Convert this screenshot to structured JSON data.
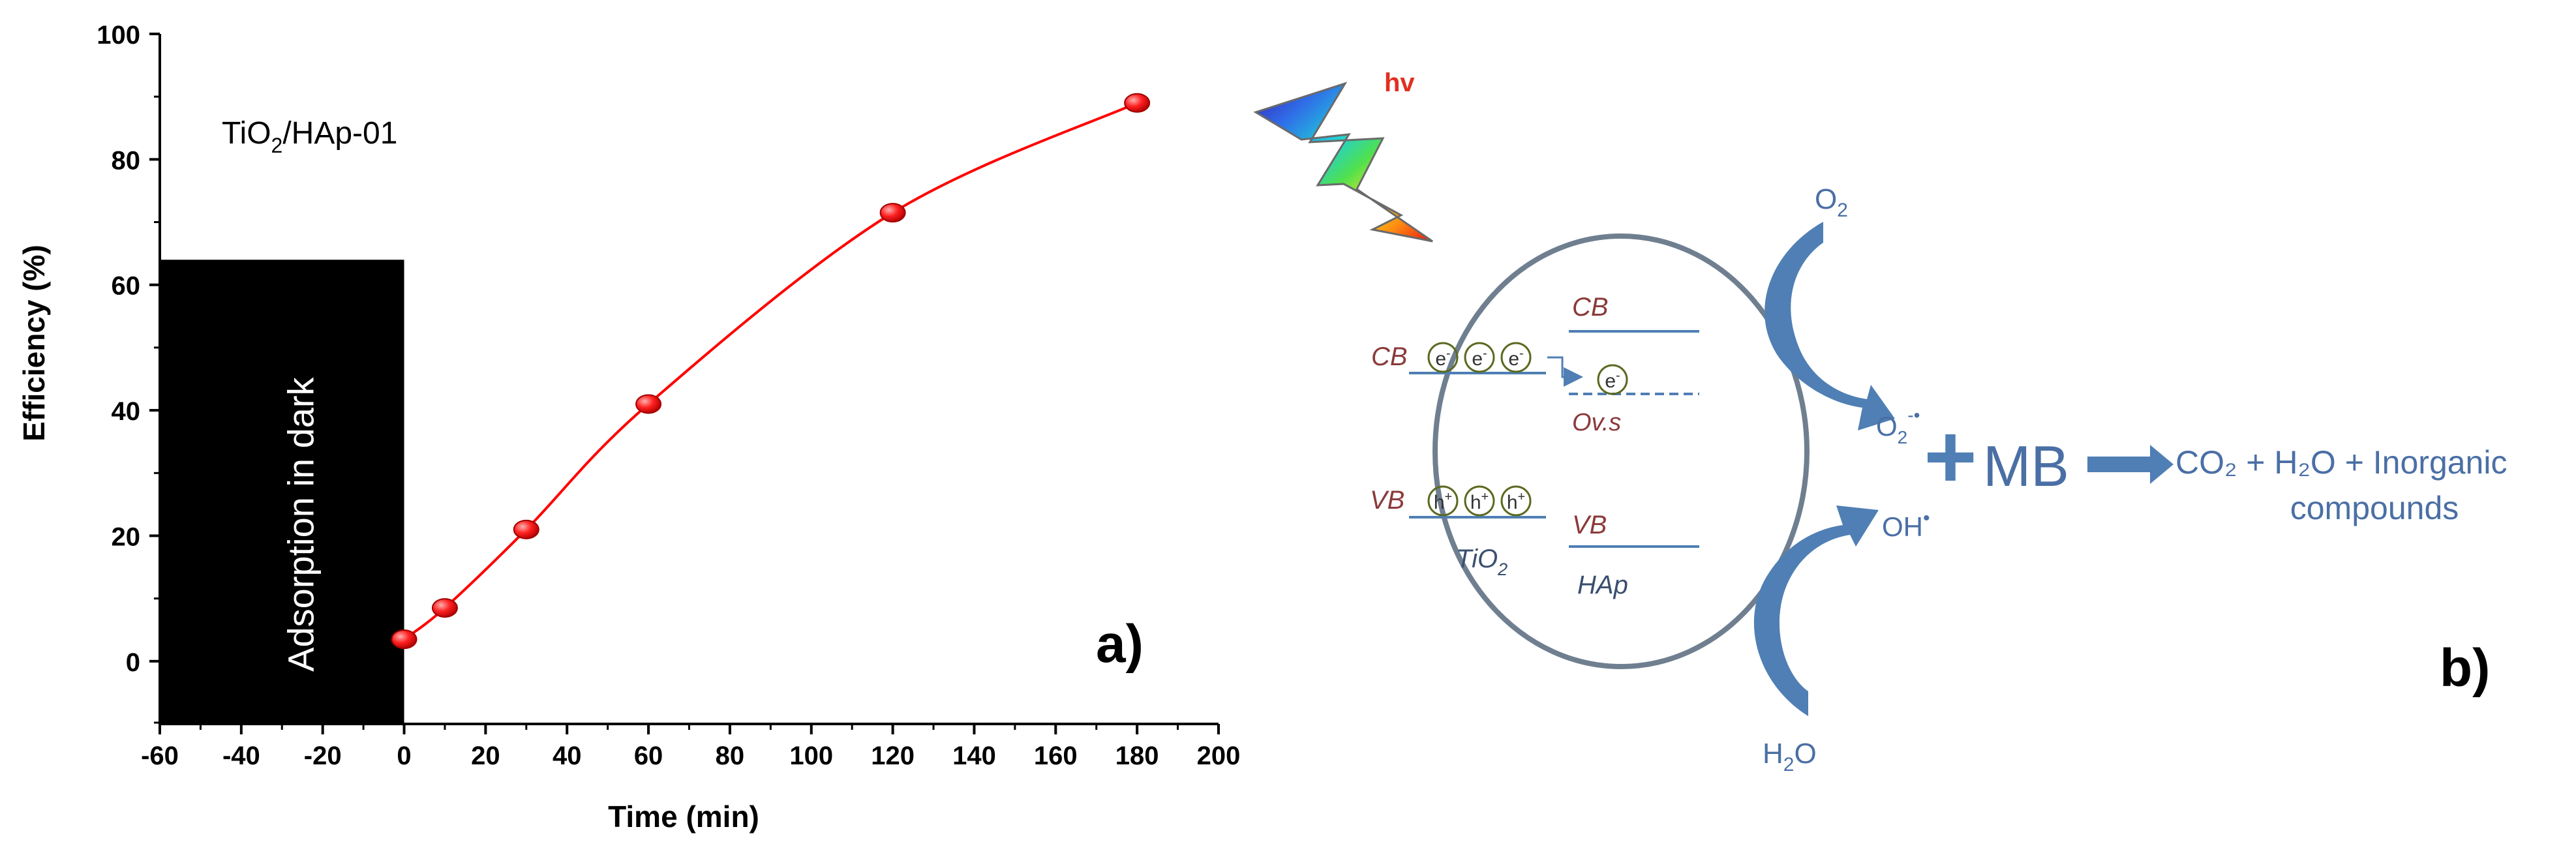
{
  "panel_a": {
    "label": "a)",
    "annotation_main": "TiO",
    "annotation_sub": "2",
    "annotation_rest": "/HAp-01",
    "dark_box_label": "Adsorption in dark"
  },
  "chart_data": {
    "type": "scatter",
    "xlabel": "Time (min)",
    "ylabel": "Efficiency (%)",
    "xlim": [
      -60,
      200
    ],
    "ylim": [
      -10,
      100
    ],
    "xticks": [
      "-60",
      "-40",
      "-20",
      "0",
      "20",
      "40",
      "60",
      "80",
      "100",
      "120",
      "140",
      "160",
      "180",
      "200"
    ],
    "yticks": [
      "0",
      "20",
      "40",
      "60",
      "80",
      "100"
    ],
    "xtick_values": [
      -60,
      -40,
      -20,
      0,
      20,
      40,
      60,
      80,
      100,
      120,
      140,
      160,
      180,
      200
    ],
    "ytick_values": [
      0,
      20,
      40,
      60,
      80,
      100
    ],
    "x": [
      0,
      10,
      30,
      60,
      120,
      180
    ],
    "y": [
      3.5,
      8.5,
      21,
      41,
      71.5,
      89
    ],
    "fit_curve": true,
    "dark_region_x": [
      -60,
      0
    ],
    "dark_region_top": 64,
    "marker_color": "#ff0000",
    "line_color": "#ff0000",
    "grid": false
  },
  "panel_b": {
    "label": "b)",
    "hv": "hv",
    "tio2_cb": "CB",
    "tio2_vb": "VB",
    "hap_cb": "CB",
    "hap_vb": "VB",
    "ovs": "Ov.s",
    "tio2_main": "TiO",
    "tio2_sub": "2",
    "hap": "HAp",
    "electron": "e",
    "electron_sup": "-",
    "hole": "h",
    "hole_sup": "+",
    "o2_main": "O",
    "o2_sub": "2",
    "superoxide_main": "O",
    "superoxide_sub": "2",
    "superoxide_sup": "-•",
    "hydroxyl_main": "OH",
    "hydroxyl_sup": "•",
    "h2o_h": "H",
    "h2o_sub": "2",
    "h2o_o": "O",
    "plus": "+",
    "mb": "MB",
    "products_line1": "CO₂ + H₂O + Inorganic",
    "products_line2": "compounds",
    "text_color": "#4a6fa5",
    "arrow_color": "#4f7fb4",
    "band_color": "#8b3a3a"
  }
}
